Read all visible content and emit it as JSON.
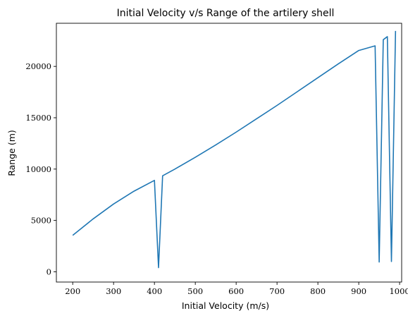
{
  "chart_data": {
    "type": "line",
    "title": "Initial Velocity v/s Range of the artilery shell",
    "xlabel": "Initial Velocity (m/s)",
    "ylabel": "Range (m)",
    "xlim": [
      160,
      1005
    ],
    "ylim": [
      -1000,
      24200
    ],
    "xticks": [
      200,
      300,
      400,
      500,
      600,
      700,
      800,
      900,
      1000
    ],
    "yticks": [
      0,
      5000,
      10000,
      15000,
      20000
    ],
    "grid": false,
    "line_color": "#1f77b4",
    "series": [
      {
        "x": [
          200,
          250,
          300,
          350,
          400,
          410,
          420,
          450,
          500,
          550,
          600,
          650,
          700,
          750,
          800,
          850,
          900,
          940,
          950,
          960,
          970,
          980,
          990
        ],
        "y": [
          3550,
          5150,
          6600,
          7850,
          8900,
          400,
          9350,
          10000,
          11150,
          12350,
          13600,
          14900,
          16200,
          17550,
          18900,
          20250,
          21550,
          22000,
          950,
          22600,
          22900,
          1000,
          23450
        ]
      }
    ]
  }
}
